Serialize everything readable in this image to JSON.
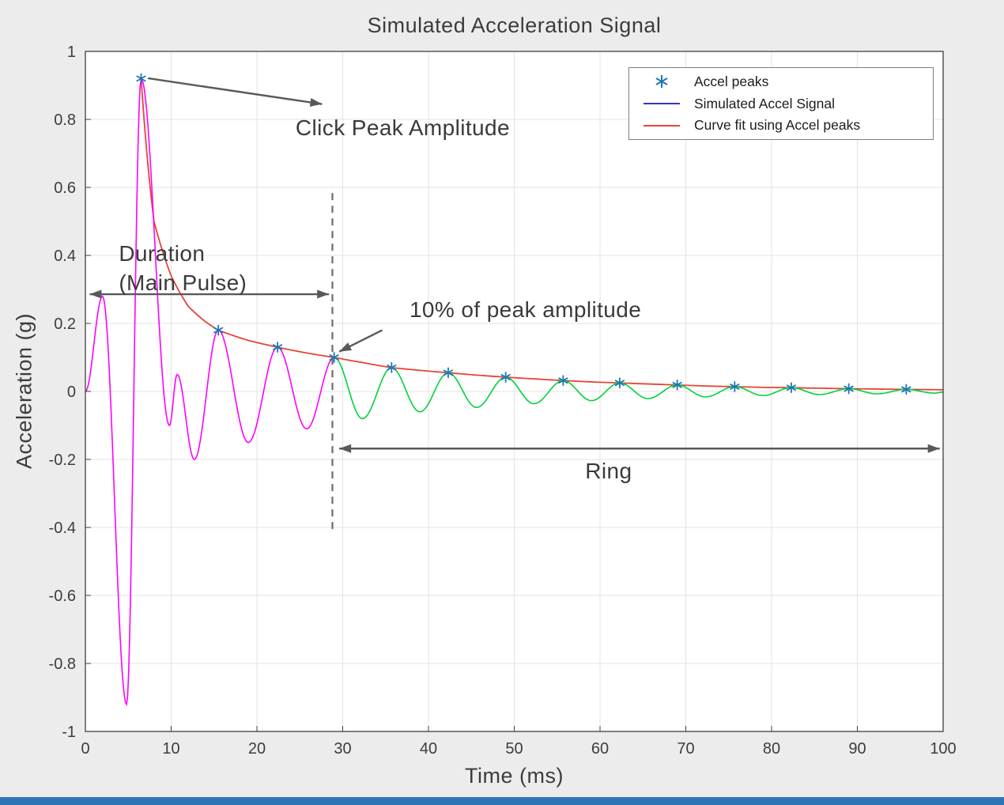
{
  "page": {
    "background_color": "#ececec",
    "bottom_bar_color": "#2e75b6"
  },
  "chart_data": {
    "type": "line",
    "title": "Simulated Acceleration Signal",
    "xlabel": "Time (ms)",
    "ylabel": "Acceleration (g)",
    "xlim": [
      0,
      100
    ],
    "ylim": [
      -1,
      1
    ],
    "xticks": [
      0,
      10,
      20,
      30,
      40,
      50,
      60,
      70,
      80,
      90,
      100
    ],
    "xtick_labels": [
      "0",
      "10",
      "20",
      "30",
      "40",
      "50",
      "60",
      "70",
      "80",
      "90",
      "100"
    ],
    "yticks": [
      -1,
      -0.8,
      -0.6,
      -0.4,
      -0.2,
      0,
      0.2,
      0.4,
      0.6,
      0.8,
      1
    ],
    "ytick_labels": [
      "-1",
      "-0.8",
      "-0.6",
      "-0.4",
      "-0.2",
      "0",
      "0.2",
      "0.4",
      "0.6",
      "0.8",
      "1"
    ],
    "grid": true,
    "legend": {
      "position": "top-right",
      "items": [
        {
          "label": "Accel peaks",
          "marker": "asterisk",
          "color": "#1f77b4"
        },
        {
          "label": "Simulated Accel Signal",
          "marker": "line",
          "color": "#3333cc"
        },
        {
          "label": "Curve fit using Accel peaks",
          "marker": "line",
          "color": "#e74436"
        }
      ]
    },
    "style": {
      "plot_bg": "#ffffff",
      "grid_color": "#e3e3e3",
      "axis_color": "#3f3f3f",
      "text_color": "#3d3d3d",
      "tick_font_size": 20,
      "main_pulse_color": "#ff00ff",
      "ring_color": "#00d23c",
      "fit_color": "#e74436",
      "marker_color": "#1f77b4",
      "arrow_color": "#595959",
      "dashed_line_color": "#6b6b6b"
    },
    "split_time": 29,
    "signal_extrema": [
      [
        0,
        0
      ],
      [
        2,
        0.28
      ],
      [
        4.8,
        -0.92
      ],
      [
        6.5,
        0.92
      ],
      [
        9.8,
        -0.1
      ],
      [
        10.7,
        0.05
      ],
      [
        12.7,
        -0.2
      ],
      [
        15.5,
        0.18
      ],
      [
        19,
        -0.15
      ],
      [
        22.4,
        0.13
      ],
      [
        25.8,
        -0.11
      ],
      [
        29,
        0.1
      ],
      [
        32.3,
        -0.08
      ],
      [
        35.7,
        0.07
      ],
      [
        39,
        -0.06
      ],
      [
        42.3,
        0.055
      ],
      [
        45.6,
        -0.047
      ],
      [
        49,
        0.042
      ],
      [
        52.3,
        -0.036
      ],
      [
        55.7,
        0.032
      ],
      [
        59,
        -0.027
      ],
      [
        62.3,
        0.025
      ],
      [
        65.6,
        -0.021
      ],
      [
        69,
        0.019
      ],
      [
        72.3,
        -0.016
      ],
      [
        75.7,
        0.014
      ],
      [
        79,
        -0.012
      ],
      [
        82.3,
        0.011
      ],
      [
        85.6,
        -0.009
      ],
      [
        89,
        0.008
      ],
      [
        92.3,
        -0.007
      ],
      [
        95.7,
        0.006
      ],
      [
        99,
        -0.005
      ],
      [
        100,
        -0.002
      ]
    ],
    "peaks": [
      [
        6.5,
        0.92
      ],
      [
        15.5,
        0.18
      ],
      [
        22.4,
        0.13
      ],
      [
        29,
        0.1
      ],
      [
        35.7,
        0.07
      ],
      [
        42.3,
        0.055
      ],
      [
        49,
        0.042
      ],
      [
        55.7,
        0.032
      ],
      [
        62.3,
        0.025
      ],
      [
        69,
        0.019
      ],
      [
        75.7,
        0.014
      ],
      [
        82.3,
        0.011
      ],
      [
        89,
        0.008
      ],
      [
        95.7,
        0.006
      ]
    ],
    "fit_curve": [
      [
        6.5,
        0.92
      ],
      [
        8,
        0.5
      ],
      [
        10,
        0.34
      ],
      [
        12,
        0.25
      ],
      [
        14,
        0.205
      ],
      [
        15.5,
        0.18
      ],
      [
        19,
        0.15
      ],
      [
        22.4,
        0.13
      ],
      [
        25.8,
        0.113
      ],
      [
        29,
        0.1
      ],
      [
        32.3,
        0.085
      ],
      [
        35.7,
        0.07
      ],
      [
        39,
        0.062
      ],
      [
        42.3,
        0.055
      ],
      [
        45.6,
        0.048
      ],
      [
        49,
        0.042
      ],
      [
        52.3,
        0.037
      ],
      [
        55.7,
        0.032
      ],
      [
        59,
        0.028
      ],
      [
        62.3,
        0.025
      ],
      [
        65.6,
        0.022
      ],
      [
        69,
        0.019
      ],
      [
        72.3,
        0.016
      ],
      [
        75.7,
        0.014
      ],
      [
        79,
        0.012
      ],
      [
        82.3,
        0.011
      ],
      [
        85.6,
        0.0095
      ],
      [
        89,
        0.008
      ],
      [
        92.3,
        0.007
      ],
      [
        95.7,
        0.006
      ],
      [
        100,
        0.005
      ]
    ],
    "annotations": {
      "click_peak": {
        "label": "Click Peak Amplitude",
        "arrow": {
          "x1": 7.3,
          "y1": 0.921,
          "x2": 27.6,
          "y2": 0.845
        },
        "label_pos": {
          "x": 37.0,
          "y": 0.775
        }
      },
      "duration": {
        "label_line1": "Duration",
        "label_line2": "(Main Pulse)",
        "arrow": {
          "x1": 0.5,
          "y1": 0.286,
          "x2": 28.4,
          "y2": 0.286,
          "double": true
        },
        "label_pos": {
          "x": 3.9,
          "y": 0.447,
          "anchor": "top-left"
        }
      },
      "ten_percent": {
        "label": "10% of peak amplitude",
        "arrow": {
          "x1": 34.6,
          "y1": 0.18,
          "x2": 29.6,
          "y2": 0.117
        },
        "label_pos": {
          "x": 51.3,
          "y": 0.24
        }
      },
      "ring": {
        "label": "Ring",
        "arrow": {
          "x1": 29.6,
          "y1": -0.168,
          "x2": 99.6,
          "y2": -0.168,
          "double": true
        },
        "label_pos": {
          "x": 61.0,
          "y": -0.235
        }
      },
      "threshold_line": {
        "x": 28.8,
        "y1": -0.405,
        "y2": 0.6,
        "style": "dashed"
      }
    }
  }
}
